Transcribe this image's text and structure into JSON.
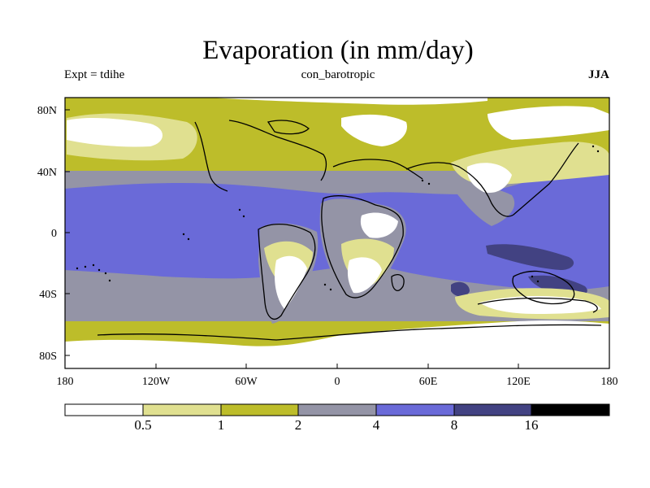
{
  "title": "Evaporation (in mm/day)",
  "experiment": "Expt = tdihe",
  "run_name": "con_barotropic",
  "season": "JJA",
  "axes": {
    "lat_ticks": [
      "80N",
      "40N",
      "0",
      "40S",
      "80S"
    ],
    "lon_ticks": [
      "180",
      "120W",
      "60W",
      "0",
      "60E",
      "120E",
      "180"
    ]
  },
  "colorbar": {
    "labels": [
      "0.5",
      "1",
      "2",
      "4",
      "8",
      "16"
    ],
    "colors": [
      "#ffffff",
      "#e0e090",
      "#bdbd2a",
      "#9494a6",
      "#6a6ad8",
      "#424282",
      "#000000"
    ]
  },
  "palette": {
    "low": "#ffffff",
    "light_yellow": "#e0e090",
    "olive": "#bdbd2a",
    "grey": "#9494a6",
    "blue": "#6a6ad8",
    "dark_blue": "#424282",
    "coast": "#000000"
  }
}
